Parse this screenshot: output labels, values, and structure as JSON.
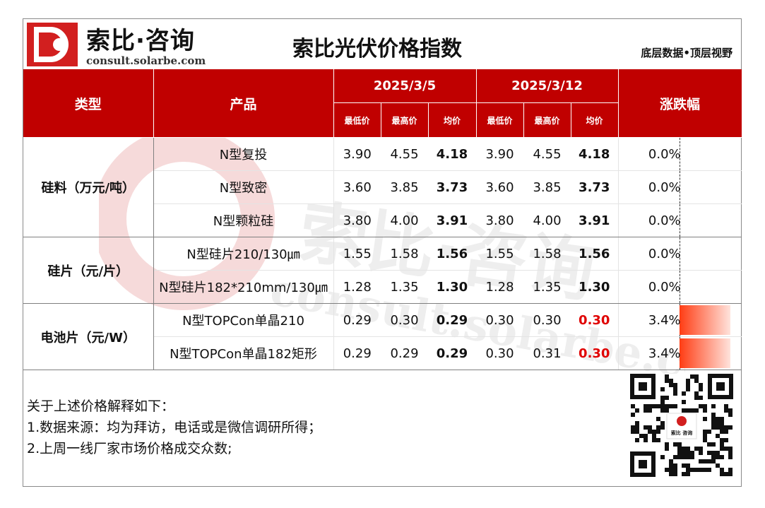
{
  "header": {
    "logo_cn": "索比·咨询",
    "logo_en": "consult.solarbe.com",
    "title": "索比光伏价格指数",
    "slogan": "底层数据•顶层视野"
  },
  "watermark": {
    "cn": "索比·咨询",
    "en": "consult.solarbe.com"
  },
  "table": {
    "headers": {
      "type": "类型",
      "product": "产品",
      "date1": "2025/3/5",
      "date2": "2025/3/12",
      "change": "涨跌幅",
      "min": "最低价",
      "max": "最高价",
      "avg": "均价"
    },
    "groups": [
      {
        "category": "硅料（万元/吨）",
        "rows": [
          {
            "product": "N型复投",
            "d1": [
              "3.90",
              "4.55",
              "4.18"
            ],
            "d2": [
              "3.90",
              "4.55",
              "4.18"
            ],
            "change": "0.0%",
            "change_pct": 0.0
          },
          {
            "product": "N型致密",
            "d1": [
              "3.60",
              "3.85",
              "3.73"
            ],
            "d2": [
              "3.60",
              "3.85",
              "3.73"
            ],
            "change": "0.0%",
            "change_pct": 0.0
          },
          {
            "product": "N型颗粒硅",
            "d1": [
              "3.80",
              "4.00",
              "3.91"
            ],
            "d2": [
              "3.80",
              "4.00",
              "3.91"
            ],
            "change": "0.0%",
            "change_pct": 0.0
          }
        ]
      },
      {
        "category": "硅片（元/片）",
        "rows": [
          {
            "product": "N型硅片210/130㎛",
            "d1": [
              "1.55",
              "1.58",
              "1.56"
            ],
            "d2": [
              "1.55",
              "1.58",
              "1.56"
            ],
            "change": "0.0%",
            "change_pct": 0.0
          },
          {
            "product": "N型硅片182*210mm/130㎛",
            "d1": [
              "1.28",
              "1.35",
              "1.30"
            ],
            "d2": [
              "1.28",
              "1.35",
              "1.30"
            ],
            "change": "0.0%",
            "change_pct": 0.0
          }
        ]
      },
      {
        "category": "电池片（元/W）",
        "rows": [
          {
            "product": "N型TOPCon单晶210",
            "d1": [
              "0.29",
              "0.30",
              "0.29"
            ],
            "d2": [
              "0.30",
              "0.30",
              "0.30"
            ],
            "change": "3.4%",
            "change_pct": 3.4
          },
          {
            "product": "N型TOPCon单晶182矩形",
            "d1": [
              "0.29",
              "0.29",
              "0.29"
            ],
            "d2": [
              "0.30",
              "0.31",
              "0.30"
            ],
            "change": "3.4%",
            "change_pct": 3.4
          }
        ]
      }
    ]
  },
  "notes": {
    "intro": "关于上述价格解释如下：",
    "line1": "1.数据来源：均为拜访，电话或是微信调研所得；",
    "line2": "2.上周一线厂家市场价格成交众数;"
  },
  "qr_label": "索比 咨询",
  "colors": {
    "brand_red": "#c00000",
    "increase_red": "#e00000",
    "bar_gradient_start": "#ff3d14"
  }
}
